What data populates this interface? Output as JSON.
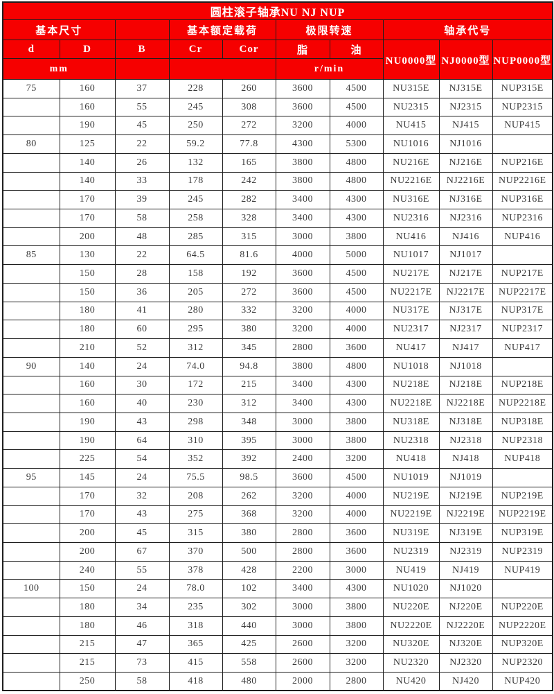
{
  "title": "圆柱滚子轴承NU NJ NUP",
  "header": {
    "group_basic_dim": "基本尺寸",
    "group_rated_load": "基本额定载荷",
    "group_limit_speed": "极限转速",
    "group_bearing_code": "轴承代号",
    "col_d": "d",
    "col_D": "D",
    "col_B": "B",
    "col_Cr": "Cr",
    "col_Cor": "Cor",
    "col_grease": "脂",
    "col_oil": "油",
    "col_nu": "NU0000型",
    "col_nj": "NJ0000型",
    "col_nup": "NUP0000型",
    "unit_mm": "mm",
    "unit_rmin": "r/min"
  },
  "colors": {
    "header_bg": "#f60000",
    "header_text": "#ffffff",
    "border": "#1e1e1e",
    "cell_text": "#3b3b3b"
  },
  "column_keys": [
    "d",
    "D",
    "B",
    "Cr",
    "Cor",
    "grease",
    "oil",
    "nu",
    "nj",
    "nup"
  ],
  "rows": [
    [
      "75",
      "160",
      "37",
      "228",
      "260",
      "3600",
      "4500",
      "NU315E",
      "NJ315E",
      "NUP315E"
    ],
    [
      "",
      "160",
      "55",
      "245",
      "308",
      "3600",
      "4500",
      "NU2315",
      "NJ2315",
      "NUP2315"
    ],
    [
      "",
      "190",
      "45",
      "250",
      "272",
      "3200",
      "4000",
      "NU415",
      "NJ415",
      "NUP415"
    ],
    [
      "80",
      "125",
      "22",
      "59.2",
      "77.8",
      "4300",
      "5300",
      "NU1016",
      "NJ1016",
      ""
    ],
    [
      "",
      "140",
      "26",
      "132",
      "165",
      "3800",
      "4800",
      "NU216E",
      "NJ216E",
      "NUP216E"
    ],
    [
      "",
      "140",
      "33",
      "178",
      "242",
      "3800",
      "4800",
      "NU2216E",
      "NJ2216E",
      "NUP2216E"
    ],
    [
      "",
      "170",
      "39",
      "245",
      "282",
      "3400",
      "4300",
      "NU316E",
      "NJ316E",
      "NUP316E"
    ],
    [
      "",
      "170",
      "58",
      "258",
      "328",
      "3400",
      "4300",
      "NU2316",
      "NJ2316",
      "NUP2316"
    ],
    [
      "",
      "200",
      "48",
      "285",
      "315",
      "3000",
      "3800",
      "NU416",
      "NJ416",
      "NUP416"
    ],
    [
      "85",
      "130",
      "22",
      "64.5",
      "81.6",
      "4000",
      "5000",
      "NU1017",
      "NJ1017",
      ""
    ],
    [
      "",
      "150",
      "28",
      "158",
      "192",
      "3600",
      "4500",
      "NU217E",
      "NJ217E",
      "NUP217E"
    ],
    [
      "",
      "150",
      "36",
      "205",
      "272",
      "3600",
      "4500",
      "NU2217E",
      "NJ2217E",
      "NUP2217E"
    ],
    [
      "",
      "180",
      "41",
      "280",
      "332",
      "3200",
      "4000",
      "NU317E",
      "NJ317E",
      "NUP317E"
    ],
    [
      "",
      "180",
      "60",
      "295",
      "380",
      "3200",
      "4000",
      "NU2317",
      "NJ2317",
      "NUP2317"
    ],
    [
      "",
      "210",
      "52",
      "312",
      "345",
      "2800",
      "3600",
      "NU417",
      "NJ417",
      "NUP417"
    ],
    [
      "90",
      "140",
      "24",
      "74.0",
      "94.8",
      "3800",
      "4800",
      "NU1018",
      "NJ1018",
      ""
    ],
    [
      "",
      "160",
      "30",
      "172",
      "215",
      "3400",
      "4300",
      "NU218E",
      "NJ218E",
      "NUP218E"
    ],
    [
      "",
      "160",
      "40",
      "230",
      "312",
      "3400",
      "4300",
      "NU2218E",
      "NJ2218E",
      "NUP2218E"
    ],
    [
      "",
      "190",
      "43",
      "298",
      "348",
      "3000",
      "3800",
      "NU318E",
      "NJ318E",
      "NUP318E"
    ],
    [
      "",
      "190",
      "64",
      "310",
      "395",
      "3000",
      "3800",
      "NU2318",
      "NJ2318",
      "NUP2318"
    ],
    [
      "",
      "225",
      "54",
      "352",
      "392",
      "2400",
      "3200",
      "NU418",
      "NJ418",
      "NUP418"
    ],
    [
      "95",
      "145",
      "24",
      "75.5",
      "98.5",
      "3600",
      "4500",
      "NU1019",
      "NJ1019",
      ""
    ],
    [
      "",
      "170",
      "32",
      "208",
      "262",
      "3200",
      "4000",
      "NU219E",
      "NJ219E",
      "NUP219E"
    ],
    [
      "",
      "170",
      "43",
      "275",
      "368",
      "3200",
      "4000",
      "NU2219E",
      "NJ2219E",
      "NUP2219E"
    ],
    [
      "",
      "200",
      "45",
      "315",
      "380",
      "2800",
      "3600",
      "NU319E",
      "NJ319E",
      "NUP319E"
    ],
    [
      "",
      "200",
      "67",
      "370",
      "500",
      "2800",
      "3600",
      "NU2319",
      "NJ2319",
      "NUP2319"
    ],
    [
      "",
      "240",
      "55",
      "378",
      "428",
      "2200",
      "3000",
      "NU419",
      "NJ419",
      "NUP419"
    ],
    [
      "100",
      "150",
      "24",
      "78.0",
      "102",
      "3400",
      "4300",
      "NU1020",
      "NJ1020",
      ""
    ],
    [
      "",
      "180",
      "34",
      "235",
      "302",
      "3000",
      "3800",
      "NU220E",
      "NJ220E",
      "NUP220E"
    ],
    [
      "",
      "180",
      "46",
      "318",
      "440",
      "3000",
      "3800",
      "NU2220E",
      "NJ2220E",
      "NUP2220E"
    ],
    [
      "",
      "215",
      "47",
      "365",
      "425",
      "2600",
      "3200",
      "NU320E",
      "NJ320E",
      "NUP320E"
    ],
    [
      "",
      "215",
      "73",
      "415",
      "558",
      "2600",
      "3200",
      "NU2320",
      "NJ2320",
      "NUP2320"
    ],
    [
      "",
      "250",
      "58",
      "418",
      "480",
      "2000",
      "2800",
      "NU420",
      "NJ420",
      "NUP420"
    ]
  ]
}
